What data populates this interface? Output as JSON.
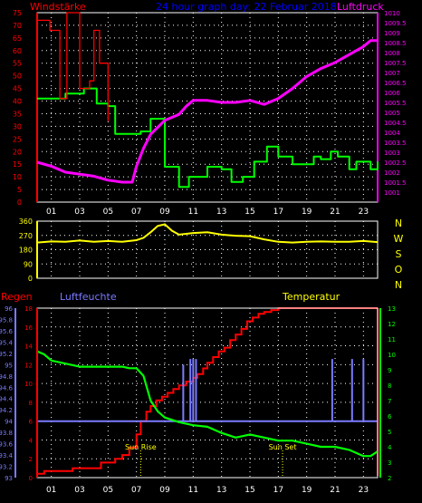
{
  "header": {
    "left_title": "Windstärke",
    "center_title": "24 hour graph day: 22 Februar 2018",
    "right_title": "Luftdruck"
  },
  "colors": {
    "background": "#000000",
    "plot_border": "#ffffff",
    "grid": "#ffffff",
    "wind_gust": "#ff0000",
    "wind_avg": "#00ff00",
    "pressure": "#ff00ff",
    "wind_dir": "#ffff00",
    "rain": "#ff0000",
    "humidity": "#7b7bff",
    "humidity_bars": "#7b7bff",
    "temperature": "#00ff00",
    "title_center": "#0000ff",
    "axis_label_yellow": "#ffff00"
  },
  "chart_data": [
    {
      "type": "line",
      "title": "24 hour graph day: 22 Februar 2018",
      "ylabel_left": "Windstärke",
      "ylabel_right": "Luftdruck",
      "x_tick_labels": [
        "01",
        "03",
        "05",
        "07",
        "09",
        "11",
        "13",
        "15",
        "17",
        "19",
        "21",
        "23"
      ],
      "xlim": [
        0,
        24
      ],
      "left_axis": {
        "ylim": [
          0,
          75
        ],
        "ticks": [
          0,
          5,
          10,
          15,
          20,
          25,
          30,
          35,
          40,
          45,
          50,
          55,
          60,
          65,
          70,
          75
        ]
      },
      "right_axis": {
        "ylim": [
          1000.5,
          1010
        ],
        "ticks": [
          "1001",
          "1001.5",
          "1002",
          "1002.5",
          "1003",
          "1003.5",
          "1004",
          "1004.5",
          "1005",
          "1005.5",
          "1006",
          "1006.5",
          "1007",
          "1007.5",
          "1008",
          "1008.5",
          "1009",
          "1009.5",
          "1010"
        ]
      },
      "grid": true,
      "series": [
        {
          "name": "Windstärke",
          "axis": "left",
          "style": "step",
          "x": [
            0,
            0.7,
            2.0,
            3.3,
            4.2,
            5.0,
            5.5,
            6.5,
            7.3,
            8.0,
            9.0,
            10.0,
            10.7,
            12.0,
            13.0,
            13.7,
            14.5,
            15.3,
            16.2,
            17.0,
            18.0,
            18.7,
            19.5,
            20.0,
            20.7,
            21.2,
            22.0,
            22.5,
            23.5,
            24.0
          ],
          "y": [
            41,
            41,
            43,
            45,
            39,
            38,
            27,
            27,
            28,
            33,
            14,
            6,
            10,
            14,
            13,
            8,
            10,
            16,
            22,
            18,
            15,
            15,
            18,
            17,
            20,
            18,
            13,
            16,
            13,
            16
          ]
        },
        {
          "name": "Windböen",
          "axis": "left",
          "style": "step",
          "x": [
            0,
            0.9,
            1.6,
            2.1,
            3.0,
            3.7,
            4.0,
            4.4,
            5.0
          ],
          "y": [
            72,
            68,
            41,
            75,
            45,
            48,
            68,
            55,
            32
          ]
        },
        {
          "name": "Luftdruck",
          "axis": "right",
          "x": [
            0,
            1,
            2,
            3,
            4,
            5,
            6,
            6.7,
            7,
            7.5,
            8,
            9,
            10,
            10.5,
            11,
            12,
            13,
            14,
            15,
            16,
            17,
            18,
            19,
            20,
            21,
            22,
            23,
            23.5,
            24
          ],
          "y": [
            1002.5,
            1002.3,
            1002.0,
            1001.9,
            1001.8,
            1001.6,
            1001.5,
            1001.5,
            1002.3,
            1003.2,
            1003.9,
            1004.6,
            1004.9,
            1005.3,
            1005.6,
            1005.6,
            1005.5,
            1005.5,
            1005.6,
            1005.4,
            1005.7,
            1006.2,
            1006.8,
            1007.2,
            1007.5,
            1007.9,
            1008.3,
            1008.6,
            1008.6
          ]
        }
      ]
    },
    {
      "type": "line",
      "title": "",
      "ylabel_right": [
        "N",
        "W",
        "S",
        "O",
        "N"
      ],
      "ylim": [
        0,
        360
      ],
      "ticks": [
        0,
        90,
        180,
        270,
        360
      ],
      "xlim": [
        0,
        24
      ],
      "grid": true,
      "series": [
        {
          "name": "Windrichtung",
          "x": [
            0,
            1,
            2,
            3,
            4,
            5,
            6,
            7,
            7.5,
            8,
            8.5,
            9,
            9.5,
            10,
            11,
            12,
            13,
            14,
            15,
            16,
            17,
            18,
            19,
            20,
            21,
            22,
            23,
            24
          ],
          "y": [
            225,
            232,
            230,
            238,
            230,
            235,
            230,
            240,
            255,
            290,
            330,
            340,
            300,
            275,
            285,
            290,
            275,
            268,
            265,
            245,
            230,
            225,
            230,
            232,
            230,
            230,
            235,
            228
          ]
        }
      ]
    },
    {
      "type": "line",
      "title": "",
      "ylabel_left_1": "Regen",
      "ylabel_left_2": "Luftfeuchte",
      "ylabel_right": "Temperatur",
      "x_tick_labels": [
        "01",
        "03",
        "05",
        "07",
        "09",
        "11",
        "13",
        "15",
        "17",
        "19",
        "21",
        "23"
      ],
      "xlim": [
        0,
        24
      ],
      "rain_axis": {
        "ylim": [
          0,
          18
        ],
        "ticks": [
          "0",
          "2",
          "4",
          "6",
          "8",
          "10",
          "12",
          "14",
          "16",
          "18"
        ]
      },
      "humidity_axis": {
        "ylim": [
          93,
          96
        ],
        "ticks": [
          "93",
          "93.2",
          "93.4",
          "93.6",
          "93.8",
          "94",
          "94.2",
          "94.4",
          "94.6",
          "94.8",
          "95",
          "95.2",
          "95.4",
          "95.6",
          "95.8",
          "96"
        ]
      },
      "temperature_axis": {
        "ylim": [
          2,
          13
        ],
        "ticks": [
          "2",
          "3",
          "4",
          "5",
          "6",
          "7",
          "8",
          "9",
          "10",
          "11",
          "12",
          "13"
        ]
      },
      "grid": true,
      "annotations": [
        {
          "text": "Sun Rise",
          "x": 7.3
        },
        {
          "text": "Sun Set",
          "x": 17.3
        }
      ],
      "series": [
        {
          "name": "Regen",
          "axis": "rain",
          "style": "step",
          "x": [
            0,
            0.5,
            1.5,
            2.5,
            3.5,
            4.5,
            5.5,
            6.0,
            6.5,
            7.0,
            7.3,
            7.7,
            8.0,
            8.4,
            8.8,
            9.2,
            9.6,
            10.0,
            10.5,
            11.0,
            11.3,
            11.7,
            12.0,
            12.4,
            12.8,
            13.2,
            13.6,
            14.0,
            14.4,
            14.8,
            15.2,
            15.6,
            16.0,
            16.5,
            17.0,
            24.0
          ],
          "y": [
            0.4,
            0.7,
            0.7,
            1.0,
            1.0,
            1.6,
            2.0,
            2.4,
            3.2,
            4.6,
            6.0,
            7.0,
            7.6,
            8.2,
            8.6,
            9.0,
            9.4,
            9.8,
            10.2,
            10.6,
            11.0,
            11.6,
            12.2,
            12.8,
            13.4,
            13.8,
            14.6,
            15.2,
            15.8,
            16.6,
            17.0,
            17.4,
            17.6,
            17.8,
            18.0,
            18.0
          ]
        },
        {
          "name": "Luftfeuchte",
          "axis": "humidity",
          "x": [
            0,
            24
          ],
          "y": [
            94,
            94
          ]
        },
        {
          "name": "Luftfeuchte Balken",
          "axis": "humidity",
          "style": "bars",
          "x": [
            10.3,
            10.8,
            11.0,
            11.2,
            20.8,
            22.2,
            23.0
          ],
          "y": [
            95.0,
            95.1,
            95.1,
            95.1,
            95.1,
            95.1,
            95.1
          ]
        },
        {
          "name": "Temperatur",
          "axis": "temperature",
          "x": [
            0,
            0.5,
            1,
            2,
            3,
            4,
            5,
            6,
            6.5,
            7,
            7.5,
            8,
            8.5,
            9,
            10,
            11,
            12,
            13,
            14,
            15,
            16,
            17,
            18,
            19,
            20,
            21,
            22,
            23,
            23.5,
            24
          ],
          "y": [
            10.2,
            10.0,
            9.6,
            9.4,
            9.2,
            9.2,
            9.2,
            9.2,
            9.1,
            9.1,
            8.6,
            7.0,
            6.3,
            5.9,
            5.6,
            5.4,
            5.3,
            4.9,
            4.6,
            4.8,
            4.6,
            4.4,
            4.4,
            4.2,
            4.0,
            4.0,
            3.8,
            3.4,
            3.4,
            3.7
          ]
        }
      ]
    }
  ]
}
